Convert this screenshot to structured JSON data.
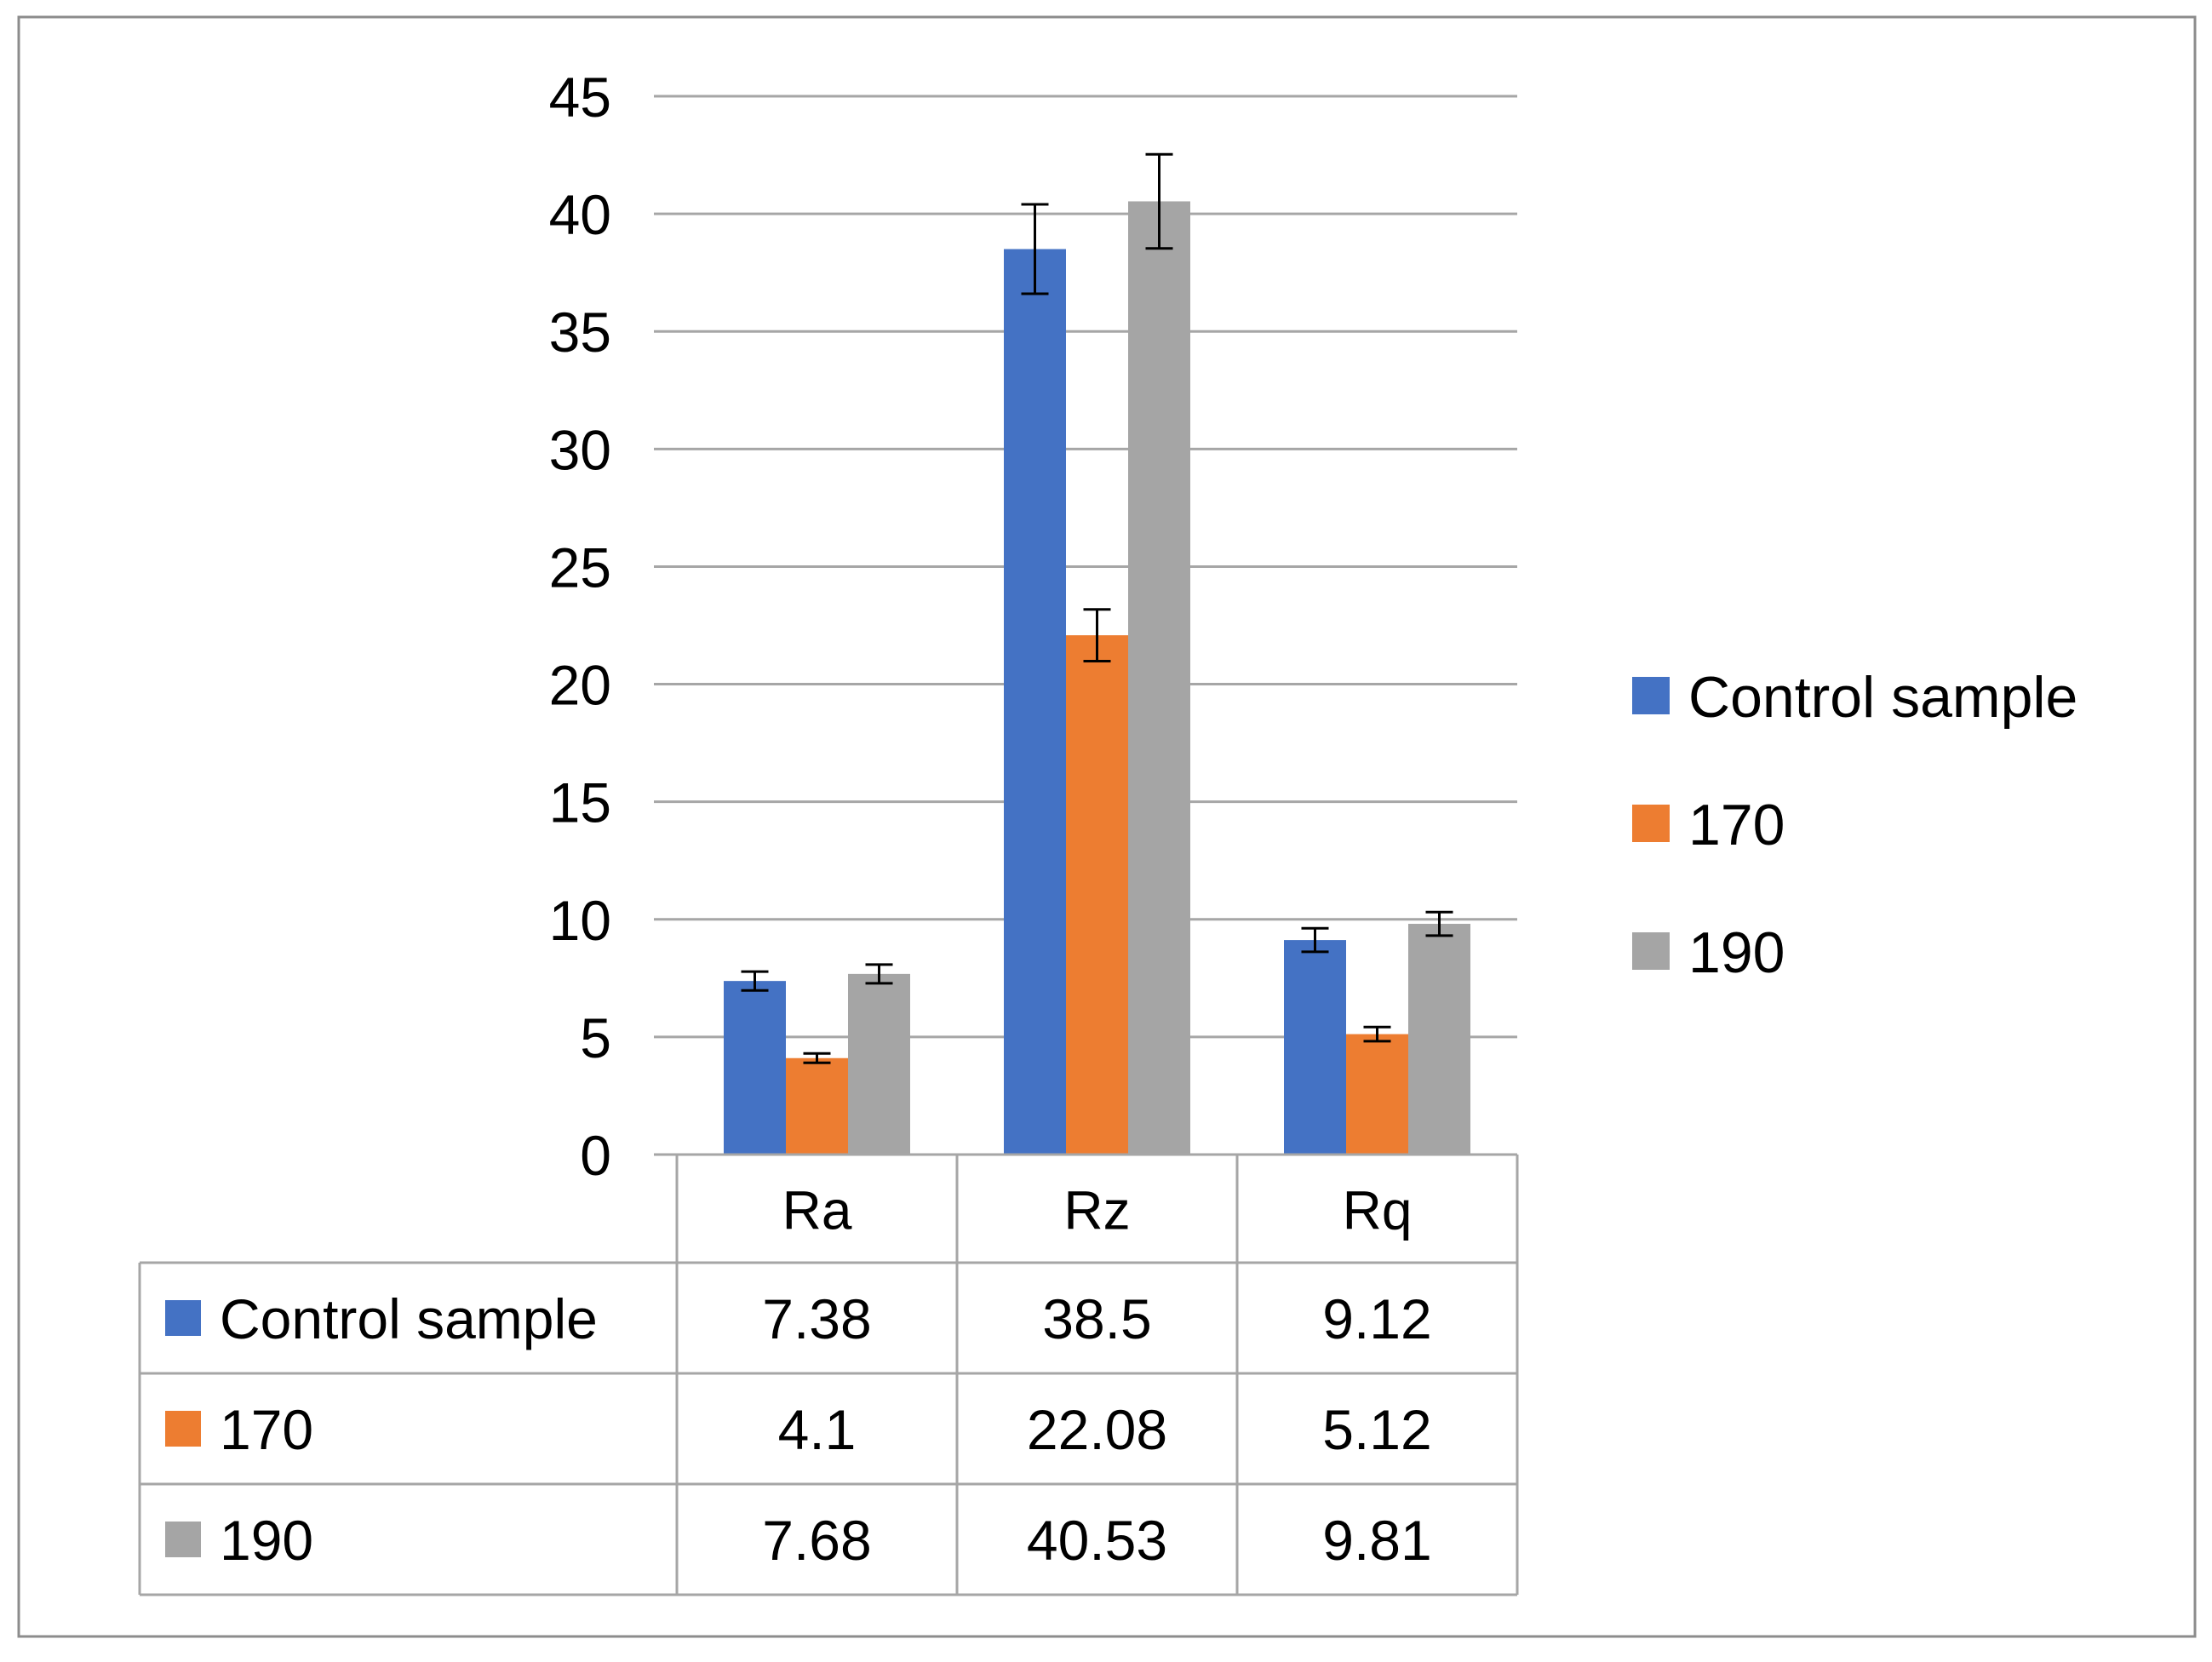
{
  "chart_data": {
    "type": "bar",
    "title": "",
    "xlabel": "",
    "ylabel": "",
    "ylim": [
      0,
      45
    ],
    "yticks": [
      0,
      5,
      10,
      15,
      20,
      25,
      30,
      35,
      40,
      45
    ],
    "grid": true,
    "legend_position": "right",
    "categories": [
      "Ra",
      "Rz",
      "Rq"
    ],
    "series": [
      {
        "name": "Control sample",
        "color": "#4472C4",
        "values": [
          7.38,
          38.5,
          9.12
        ],
        "errors": [
          0.4,
          1.9,
          0.5
        ],
        "table_values": [
          "7.38",
          "38.5",
          "9.12"
        ]
      },
      {
        "name": "170",
        "color": "#ED7D31",
        "values": [
          4.1,
          22.08,
          5.12
        ],
        "errors": [
          0.2,
          1.1,
          0.3
        ],
        "table_values": [
          "4.1",
          "22.08",
          "5.12"
        ]
      },
      {
        "name": "190",
        "color": "#A5A5A5",
        "values": [
          7.68,
          40.53,
          9.81
        ],
        "errors": [
          0.4,
          2.0,
          0.5
        ],
        "table_values": [
          "7.68",
          "40.53",
          "9.81"
        ]
      }
    ]
  }
}
